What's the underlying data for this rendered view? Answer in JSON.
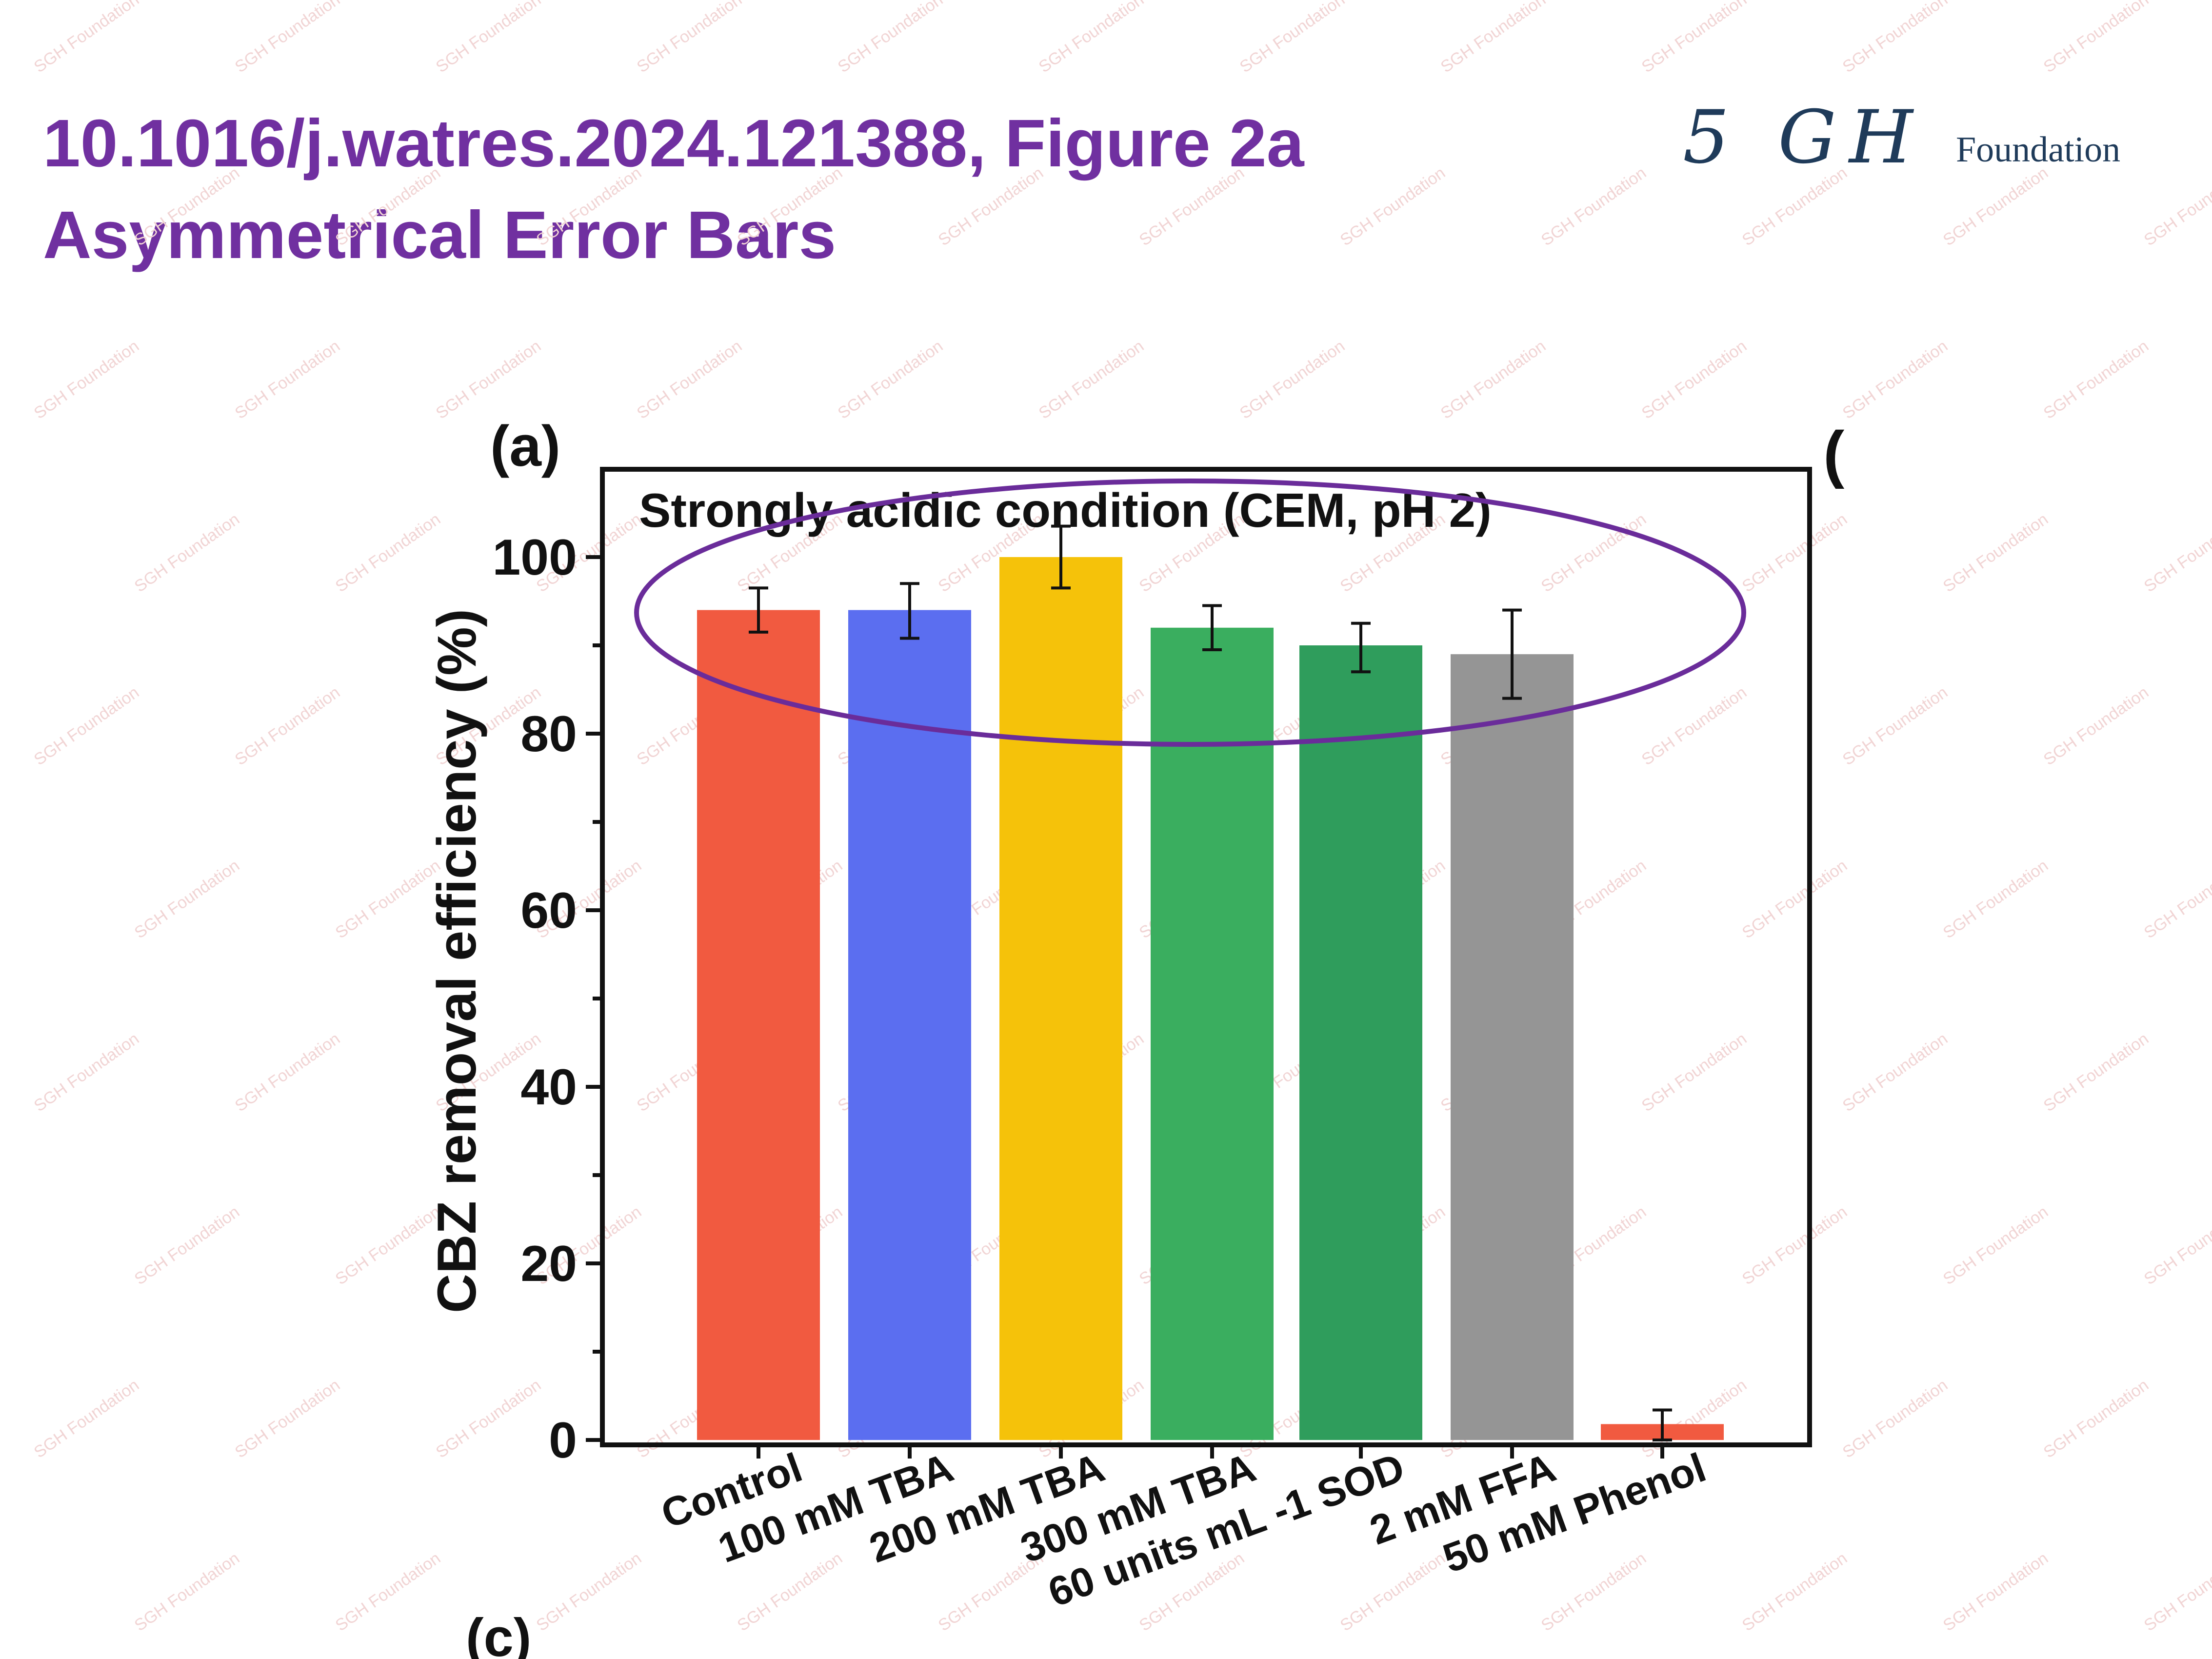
{
  "slide": {
    "title_line1": "10.1016/j.watres.2024.121388, Figure 2a",
    "title_line2": "Asymmetrical Error Bars",
    "title_color": "#7030a0"
  },
  "logo": {
    "mark": "5 GH",
    "text": "Foundation",
    "color": "#1f3b5a"
  },
  "watermark": {
    "text": "SGH Foundation",
    "color": "#f1d4d4"
  },
  "figure": {
    "panel_label": "(a)",
    "next_panel_label_partial": "(",
    "lower_panel_label_partial": "(c)",
    "highlight_color": "#6a2c9a"
  },
  "chart_data": {
    "type": "bar",
    "title": "Strongly acidic condition (CEM, pH 2)",
    "xlabel": "",
    "ylabel": "CBZ removal efficiency (%)",
    "ylim": [
      0,
      105
    ],
    "yticks": [
      0,
      20,
      40,
      60,
      80,
      100
    ],
    "grid": false,
    "legend": "none",
    "categories": [
      "Control",
      "100 mM TBA",
      "200 mM TBA",
      "300 mM TBA",
      "60 units mL -1 SOD",
      "2 mM FFA",
      "50 mM Phenol"
    ],
    "values": [
      94,
      94,
      100,
      92,
      90,
      89,
      1.8
    ],
    "error_upper": [
      2.5,
      3.0,
      3.5,
      2.5,
      2.5,
      5.0,
      1.6
    ],
    "error_lower": [
      2.5,
      3.2,
      3.5,
      2.5,
      3.0,
      5.0,
      1.8
    ],
    "colors": [
      "#f15a40",
      "#5b6ef0",
      "#f5c20a",
      "#3aae5f",
      "#2f9d5c",
      "#959595",
      "#f15a40"
    ]
  }
}
